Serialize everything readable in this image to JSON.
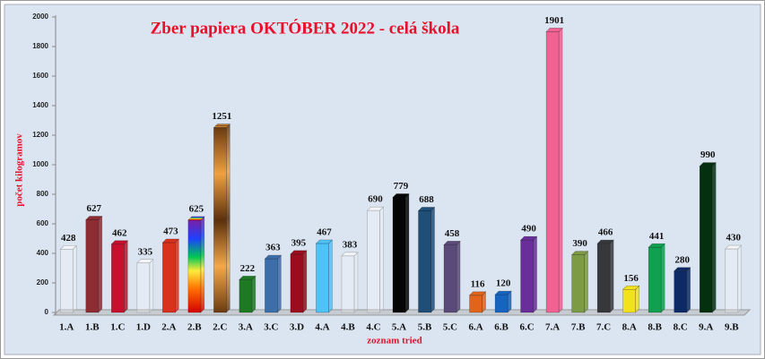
{
  "chart_data": {
    "type": "bar",
    "title": "Zber papiera OKTÓBER 2022 - celá škola",
    "y_label": "počet kilogramov",
    "x_label": "zoznam tried",
    "categories": [
      "1.A",
      "1.B",
      "1.C",
      "1.D",
      "2.A",
      "2.B",
      "2.C",
      "3.A",
      "3.C",
      "3.D",
      "4.A",
      "4.B",
      "4.C",
      "5.A",
      "5.B",
      "5.C",
      "6.A",
      "6.B",
      "6.C",
      "7.A",
      "7.B",
      "7.C",
      "8.A",
      "8.B",
      "8.C",
      "9.A",
      "9.B"
    ],
    "values": [
      428,
      627,
      462,
      335,
      473,
      625,
      1251,
      222,
      363,
      395,
      467,
      383,
      690,
      779,
      688,
      458,
      116,
      120,
      490,
      1901,
      390,
      466,
      156,
      441,
      280,
      990,
      430
    ],
    "colors": [
      "none",
      "#8e2c33",
      "#c8102e",
      "none",
      "#d8321f",
      "url(#rainbow)",
      "url(#bronze)",
      "#1e7a22",
      "#3c6faa",
      "#9b0d1e",
      "#4fc3f7",
      "none",
      "none",
      "#050505",
      "#1f4e79",
      "#5a4a7a",
      "#e2641b",
      "#1565c0",
      "#6a2e9a",
      "#f06292",
      "#7d9b45",
      "#37383b",
      "#f2e21c",
      "#10a050",
      "#0e2a66",
      "#053010",
      "none"
    ],
    "ylim": [
      0,
      2000
    ],
    "yticks": [
      0,
      200,
      400,
      600,
      800,
      1000,
      1200,
      1400,
      1600,
      1800,
      2000
    ]
  }
}
